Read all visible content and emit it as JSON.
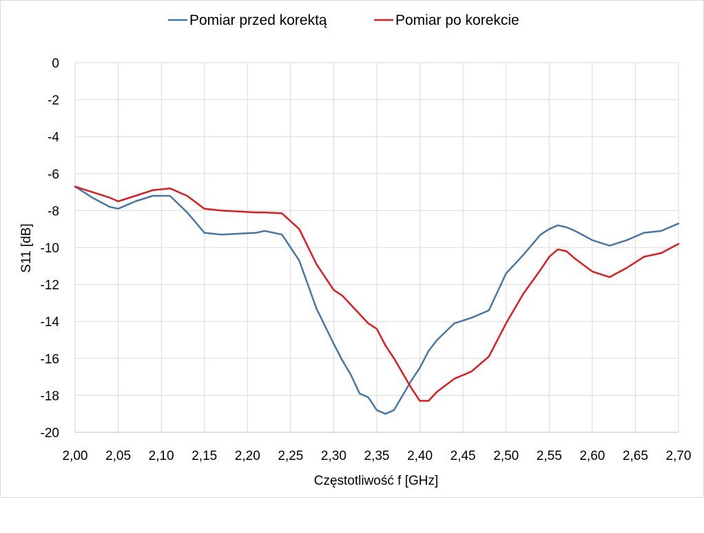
{
  "chart_data": {
    "type": "line",
    "xlabel": "Częstotliwość f [GHz]",
    "ylabel": "S11 [dB]",
    "xlim": [
      2.0,
      2.7
    ],
    "ylim": [
      -20,
      0
    ],
    "grid": true,
    "legend_position": "top",
    "x_tick_labels": [
      "2,00",
      "2,05",
      "2,10",
      "2,15",
      "2,20",
      "2,25",
      "2,30",
      "2,35",
      "2,40",
      "2,45",
      "2,50",
      "2,55",
      "2,60",
      "2,65",
      "2,70"
    ],
    "y_tick_labels": [
      "0",
      "-2",
      "-4",
      "-6",
      "-8",
      "-10",
      "-12",
      "-14",
      "-16",
      "-18",
      "-20"
    ],
    "x": [
      2.0,
      2.02,
      2.04,
      2.05,
      2.07,
      2.09,
      2.11,
      2.13,
      2.15,
      2.17,
      2.19,
      2.21,
      2.22,
      2.24,
      2.26,
      2.28,
      2.3,
      2.31,
      2.32,
      2.33,
      2.34,
      2.35,
      2.36,
      2.37,
      2.38,
      2.39,
      2.4,
      2.41,
      2.42,
      2.44,
      2.46,
      2.48,
      2.5,
      2.52,
      2.54,
      2.55,
      2.56,
      2.57,
      2.58,
      2.6,
      2.62,
      2.64,
      2.66,
      2.68,
      2.7
    ],
    "series": [
      {
        "name": "Pomiar przed korektą",
        "color": "#4477aa",
        "values": [
          -6.7,
          -7.3,
          -7.8,
          -7.9,
          -7.5,
          -7.2,
          -7.2,
          -8.1,
          -9.2,
          -9.3,
          -9.25,
          -9.2,
          -9.1,
          -9.3,
          -10.7,
          -13.3,
          -15.2,
          -16.1,
          -16.9,
          -17.9,
          -18.1,
          -18.8,
          -19.0,
          -18.8,
          -18.0,
          -17.2,
          -16.5,
          -15.6,
          -15.0,
          -14.1,
          -13.8,
          -13.4,
          -11.4,
          -10.4,
          -9.3,
          -9.0,
          -8.8,
          -8.9,
          -9.1,
          -9.6,
          -9.9,
          -9.6,
          -9.2,
          -9.1,
          -8.7
        ]
      },
      {
        "name": "Pomiar po korekcie",
        "color": "#e31a1c",
        "values": [
          -6.7,
          -7.0,
          -7.3,
          -7.5,
          -7.2,
          -6.9,
          -6.8,
          -7.2,
          -7.9,
          -8.0,
          -8.05,
          -8.1,
          -8.1,
          -8.15,
          -9.0,
          -10.9,
          -12.3,
          -12.6,
          -13.1,
          -13.6,
          -14.1,
          -14.4,
          -15.3,
          -16.0,
          -16.8,
          -17.6,
          -18.3,
          -18.3,
          -17.8,
          -17.1,
          -16.7,
          -15.9,
          -14.1,
          -12.5,
          -11.2,
          -10.5,
          -10.1,
          -10.2,
          -10.6,
          -11.3,
          -11.6,
          -11.1,
          -10.5,
          -10.3,
          -9.8
        ]
      }
    ]
  }
}
